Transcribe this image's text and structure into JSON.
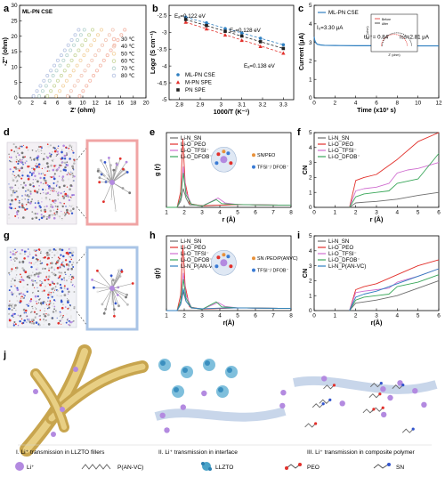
{
  "panel_letters": [
    "a",
    "b",
    "c",
    "d",
    "e",
    "f",
    "g",
    "h",
    "i",
    "j"
  ],
  "chart_data": [
    {
      "id": "a",
      "type": "scatter",
      "title": "ML-PN CSE",
      "xlabel": "Z' (ohm)",
      "ylabel": "-Z'' (ohm)",
      "xlim": [
        0,
        20
      ],
      "ylim": [
        0,
        30
      ],
      "xticks": [
        0,
        2,
        4,
        6,
        8,
        10,
        12,
        14,
        16,
        18,
        20
      ],
      "yticks": [
        0,
        5,
        10,
        15,
        20,
        25,
        30
      ],
      "legend_position": "center-right",
      "series": [
        {
          "name": "30 ℃",
          "color": "#f4b6a6",
          "x0": 9.5,
          "slope": 3.0
        },
        {
          "name": "40 ℃",
          "color": "#f2c6b5",
          "x0": 7.6,
          "slope": 3.0
        },
        {
          "name": "50 ℃",
          "color": "#f3d3a2",
          "x0": 5.8,
          "slope": 3.0
        },
        {
          "name": "60 ℃",
          "color": "#c9d79e",
          "x0": 4.4,
          "slope": 3.0
        },
        {
          "name": "70 ℃",
          "color": "#b7d4cf",
          "x0": 3.1,
          "slope": 3.0
        },
        {
          "name": "80 ℃",
          "color": "#b7c4e2",
          "x0": 2.2,
          "slope": 3.0
        }
      ]
    },
    {
      "id": "b",
      "type": "line",
      "xlabel": "1000/T (K⁻¹)",
      "ylabel": "Logσ (S cm⁻¹)",
      "xlim": [
        2.75,
        3.35
      ],
      "ylim": [
        -5.0,
        -2.2
      ],
      "xticks": [
        2.8,
        2.9,
        3.0,
        3.1,
        3.2,
        3.3
      ],
      "yticks": [
        -2.5,
        -3.0,
        -3.5,
        -4.0,
        -4.5,
        -5.0
      ],
      "legend_position": "bottom-left",
      "annotations": [
        {
          "text": "Eₐ=0.122 eV",
          "color": "#2f7fc0"
        },
        {
          "text": "Eₐ=0.128 eV",
          "color": "#222222"
        },
        {
          "text": "Eₐ=0.138 eV",
          "color": "#e2302b"
        }
      ],
      "series": [
        {
          "name": "ML-PN CSE",
          "color": "#2f7fc0",
          "marker": "circle",
          "x": [
            2.83,
            2.93,
            3.02,
            3.1,
            3.19,
            3.3
          ],
          "y": [
            -2.55,
            -2.72,
            -2.89,
            -3.02,
            -3.18,
            -3.37
          ]
        },
        {
          "name": "M-PN SPE",
          "color": "#e2302b",
          "marker": "triangle",
          "x": [
            2.83,
            2.93,
            3.02,
            3.1,
            3.19,
            3.3
          ],
          "y": [
            -2.7,
            -2.9,
            -3.08,
            -3.24,
            -3.42,
            -3.62
          ]
        },
        {
          "name": "PN SPE",
          "color": "#222222",
          "marker": "square",
          "x": [
            2.83,
            2.93,
            3.02,
            3.1,
            3.19,
            3.3
          ],
          "y": [
            -2.62,
            -2.8,
            -2.97,
            -3.11,
            -3.28,
            -3.48
          ]
        }
      ]
    },
    {
      "id": "c",
      "type": "line",
      "xlabel": "Time (x10³ s)",
      "ylabel": "Current (μA)",
      "xlim": [
        0,
        12
      ],
      "ylim": [
        0,
        5
      ],
      "xticks": [
        0,
        2,
        4,
        6,
        8,
        10,
        12
      ],
      "yticks": [
        0,
        1,
        2,
        3,
        4,
        5
      ],
      "legend_position": "top-left",
      "annotations": [
        {
          "text": "I₀=3.30 μA"
        },
        {
          "text": "tLi⁺= 0.84",
          "color": "#2f7fc0"
        },
        {
          "text": "Iss=2.81 μA"
        }
      ],
      "series": [
        {
          "name": "ML-PN CSE",
          "color": "#2f7fc0",
          "x": [
            0,
            0.05,
            0.15,
            0.3,
            0.6,
            1,
            2,
            4,
            6,
            8,
            10,
            12
          ],
          "y": [
            3.3,
            3.12,
            2.98,
            2.9,
            2.86,
            2.84,
            2.83,
            2.82,
            2.82,
            2.81,
            2.81,
            2.81
          ]
        }
      ],
      "inset": {
        "xlabel": "Z' (ohm)",
        "ylabel": "-Z'' (ohm)",
        "legend": [
          "Before",
          "After"
        ],
        "colors": [
          "#e2302b",
          "#222222"
        ]
      }
    },
    {
      "id": "e",
      "type": "line",
      "xlabel": "r (Å)",
      "ylabel": "g (r)",
      "xlim": [
        1,
        8
      ],
      "xticks": [
        1,
        2,
        3,
        4,
        5,
        6,
        7,
        8
      ],
      "legend_position": "top-left",
      "annotations": [
        {
          "text": "SN/PEO"
        },
        {
          "text": "TFSI⁻/ DFOB⁻"
        }
      ],
      "series": [
        {
          "name": "Li-N_SN",
          "color": "#6e6e6e",
          "x": [
            1,
            1.6,
            1.8,
            1.95,
            2.1,
            2.3,
            3,
            4,
            5,
            6,
            8
          ],
          "y": [
            0,
            0,
            2,
            6,
            3,
            0.8,
            0.6,
            0.7,
            0.9,
            0.8,
            0.7
          ]
        },
        {
          "name": "Li-O_PEO",
          "color": "#e2302b",
          "x": [
            1,
            1.6,
            1.8,
            1.92,
            2.05,
            2.3,
            3,
            4,
            5,
            6,
            8
          ],
          "y": [
            0,
            0,
            5,
            22,
            8,
            1.2,
            0.5,
            0.7,
            0.9,
            0.8,
            0.7
          ]
        },
        {
          "name": "Li-O_TFSI⁻",
          "color": "#d06fd0",
          "x": [
            1,
            1.6,
            1.8,
            1.95,
            2.1,
            2.4,
            3,
            3.9,
            4.3,
            5,
            6,
            8
          ],
          "y": [
            0,
            0,
            3,
            13,
            5,
            1,
            0.4,
            3,
            1.4,
            0.9,
            0.8,
            0.7
          ]
        },
        {
          "name": "Li-O_DFOB⁻",
          "color": "#3aa75a",
          "x": [
            1,
            1.6,
            1.8,
            1.95,
            2.1,
            2.4,
            3,
            3.8,
            4.1,
            5,
            6,
            8
          ],
          "y": [
            0,
            0,
            3,
            11,
            4,
            1,
            0.4,
            2.5,
            1.2,
            0.9,
            0.8,
            0.7
          ]
        }
      ]
    },
    {
      "id": "f",
      "type": "line",
      "xlabel": "r (Å)",
      "ylabel": "CN",
      "xlim": [
        0,
        6
      ],
      "ylim": [
        0,
        5
      ],
      "xticks": [
        0,
        1,
        2,
        3,
        4,
        5,
        6
      ],
      "yticks": [
        0,
        1,
        2,
        3,
        4,
        5
      ],
      "legend_position": "top-left",
      "series": [
        {
          "name": "Li-N_SN",
          "color": "#6e6e6e",
          "x": [
            1.7,
            2.0,
            2.5,
            3,
            4,
            5,
            6
          ],
          "y": [
            0,
            0.3,
            0.35,
            0.4,
            0.55,
            0.8,
            1.0
          ]
        },
        {
          "name": "Li-O_PEO",
          "color": "#e2302b",
          "x": [
            1.7,
            2.0,
            2.4,
            3,
            4,
            5,
            6
          ],
          "y": [
            0,
            1.8,
            2.0,
            2.2,
            3.2,
            4.4,
            5.6
          ]
        },
        {
          "name": "Li-O_TFSI⁻",
          "color": "#d06fd0",
          "x": [
            1.7,
            2.0,
            2.4,
            3,
            3.6,
            4,
            4.5,
            5,
            6
          ],
          "y": [
            0,
            1.1,
            1.25,
            1.35,
            1.6,
            2.3,
            2.5,
            2.6,
            3.0
          ]
        },
        {
          "name": "Li-O_DFOB⁻",
          "color": "#3aa75a",
          "x": [
            1.7,
            2.0,
            2.4,
            3,
            3.6,
            4,
            4.5,
            5,
            6
          ],
          "y": [
            0,
            0.7,
            0.9,
            1.0,
            1.1,
            1.6,
            1.75,
            1.9,
            3.6
          ]
        }
      ]
    },
    {
      "id": "h",
      "type": "line",
      "xlabel": "r(Å)",
      "ylabel": "g(r)",
      "xlim": [
        1,
        8
      ],
      "xticks": [
        1,
        2,
        3,
        4,
        5,
        6,
        7,
        8
      ],
      "legend_position": "top-left",
      "annotations": [
        {
          "text": "SN /PEO/P(ANVC)"
        },
        {
          "text": "TFSI⁻/ DFOB⁻"
        }
      ],
      "series": [
        {
          "name": "Li-N_SN",
          "color": "#6e6e6e",
          "x": [
            1,
            1.6,
            1.8,
            1.95,
            2.1,
            2.4,
            3,
            4,
            5,
            6,
            8
          ],
          "y": [
            0,
            0,
            2,
            6,
            3,
            0.8,
            0.6,
            0.7,
            0.9,
            0.8,
            0.7
          ]
        },
        {
          "name": "Li-O_PEO",
          "color": "#e2302b",
          "x": [
            1,
            1.6,
            1.8,
            1.92,
            2.05,
            2.3,
            3,
            4,
            5,
            6,
            8
          ],
          "y": [
            0,
            0,
            5,
            21,
            8,
            1.2,
            0.5,
            0.7,
            0.9,
            0.8,
            0.7
          ]
        },
        {
          "name": "Li-O_TFSI⁻",
          "color": "#d06fd0",
          "x": [
            1,
            1.6,
            1.8,
            1.95,
            2.1,
            2.4,
            3,
            3.9,
            4.3,
            5,
            6,
            8
          ],
          "y": [
            0,
            0,
            3,
            12,
            5,
            1,
            0.4,
            2.6,
            1.3,
            0.9,
            0.8,
            0.7
          ]
        },
        {
          "name": "Li-O_DFOB⁻",
          "color": "#3aa75a",
          "x": [
            1,
            1.6,
            1.8,
            1.95,
            2.1,
            2.4,
            3,
            3.8,
            4.1,
            5,
            6,
            8
          ],
          "y": [
            0,
            0,
            3,
            10,
            4,
            1,
            0.4,
            2.8,
            1.2,
            0.9,
            0.8,
            0.7
          ]
        },
        {
          "name": "Li-N_P(AN-VC)",
          "color": "#2f7fc0",
          "x": [
            1,
            1.6,
            1.8,
            1.95,
            2.1,
            2.4,
            3,
            4,
            5,
            6,
            8
          ],
          "y": [
            0,
            0,
            2,
            7,
            3,
            0.9,
            0.6,
            0.8,
            0.9,
            0.8,
            0.7
          ]
        }
      ]
    },
    {
      "id": "i",
      "type": "line",
      "xlabel": "r(Å)",
      "ylabel": "CN",
      "xlim": [
        0,
        6
      ],
      "ylim": [
        0,
        5
      ],
      "xticks": [
        0,
        1,
        2,
        3,
        4,
        5,
        6
      ],
      "yticks": [
        0,
        1,
        2,
        3,
        4,
        5
      ],
      "legend_position": "top-left",
      "series": [
        {
          "name": "Li-N_SN",
          "color": "#6e6e6e",
          "x": [
            1.7,
            2.0,
            2.5,
            3,
            4,
            5,
            6
          ],
          "y": [
            0,
            0.5,
            0.6,
            0.7,
            1.0,
            1.5,
            2.0
          ]
        },
        {
          "name": "Li-O_PEO",
          "color": "#e2302b",
          "x": [
            1.7,
            2.0,
            2.4,
            3,
            4,
            5,
            6
          ],
          "y": [
            0,
            1.4,
            1.6,
            1.8,
            2.4,
            3.0,
            3.4
          ]
        },
        {
          "name": "Li-O_TFSI⁻",
          "color": "#d06fd0",
          "x": [
            1.7,
            2.0,
            2.4,
            3,
            3.6,
            4,
            4.5,
            5,
            6
          ],
          "y": [
            0,
            1.2,
            1.3,
            1.4,
            1.5,
            1.9,
            2.1,
            2.3,
            2.8
          ]
        },
        {
          "name": "Li-O_DFOB⁻",
          "color": "#3aa75a",
          "x": [
            1.7,
            2.0,
            2.4,
            3,
            3.6,
            4,
            4.5,
            5,
            6
          ],
          "y": [
            0,
            0.7,
            0.9,
            1.0,
            1.1,
            1.6,
            1.75,
            1.9,
            2.4
          ]
        },
        {
          "name": "Li-N_P(AN-VC)",
          "color": "#2f7fc0",
          "x": [
            1.7,
            2.0,
            2.4,
            3,
            4,
            5,
            6
          ],
          "y": [
            0,
            0.9,
            1.1,
            1.3,
            1.8,
            2.3,
            2.8
          ]
        }
      ]
    }
  ],
  "schematic_j": {
    "captions": [
      "I. Li⁺ transmission in LLZTO fillers",
      "II. Li⁺ transmission in interface",
      "III. Li⁺ transmission in composite polymer"
    ],
    "legend": [
      "Li⁺",
      "P(AN-VC)",
      "LLZTO",
      "PEO",
      "SN"
    ]
  }
}
